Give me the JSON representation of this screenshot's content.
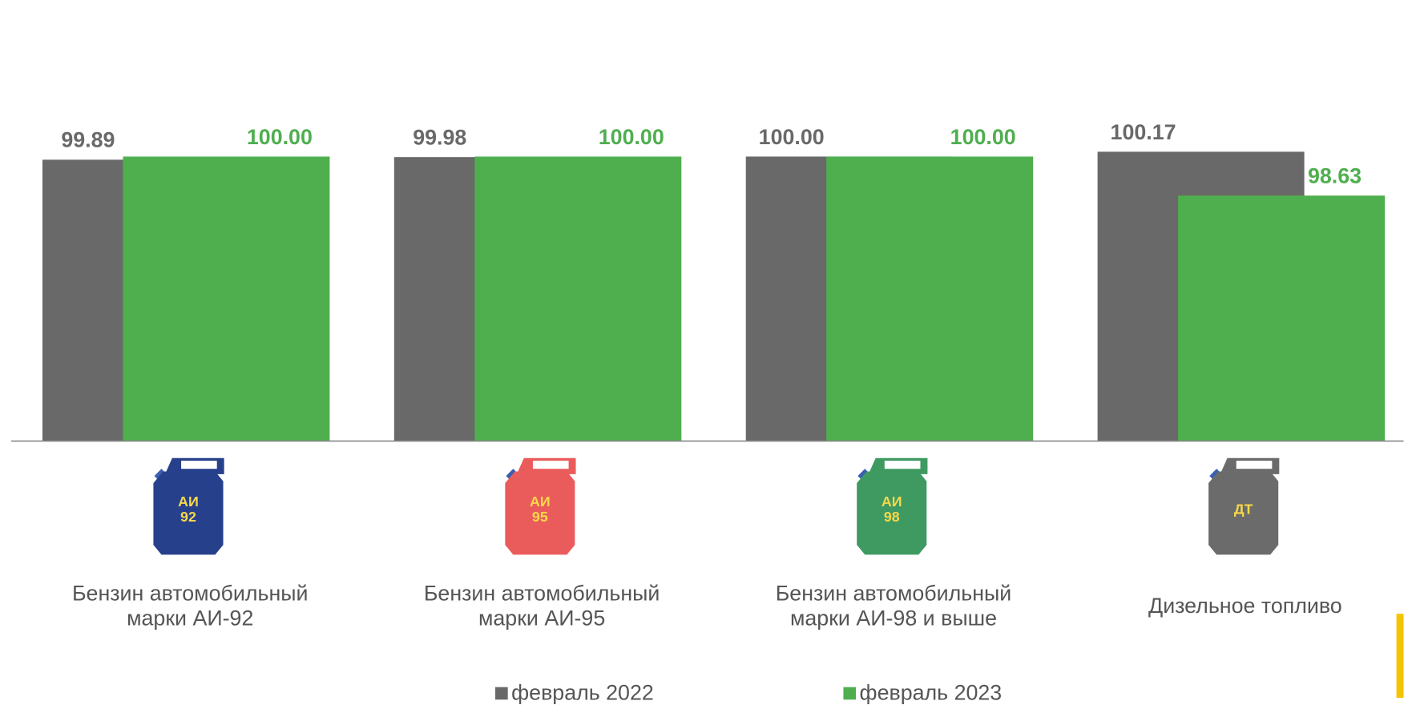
{
  "chart_data": {
    "type": "bar",
    "categories": [
      "Бензин автомобильный марки АИ-92",
      "Бензин автомобильный марки АИ-95",
      "Бензин автомобильный марки АИ-98 и выше",
      "Дизельное топливо"
    ],
    "series": [
      {
        "name": "февраль 2022",
        "color": "#696969",
        "values": [
          99.89,
          99.98,
          100.0,
          100.17
        ],
        "value_labels": [
          "99.89",
          "99.98",
          "100.00",
          "100.17"
        ]
      },
      {
        "name": "февраль 2023",
        "color": "#4faf4f",
        "values": [
          100.0,
          100.0,
          100.0,
          98.63
        ],
        "value_labels": [
          "100.00",
          "100.00",
          "100.00",
          "98.63"
        ]
      }
    ],
    "ylim": [
      90,
      100.5
    ],
    "icon_labels": [
      [
        "АИ",
        "92"
      ],
      [
        "АИ",
        "95"
      ],
      [
        "АИ",
        "98"
      ],
      [
        "ДТ"
      ]
    ],
    "icon_colors": [
      "#27408b",
      "#ea5c5c",
      "#3f9a62",
      "#6b6b6b"
    ]
  }
}
